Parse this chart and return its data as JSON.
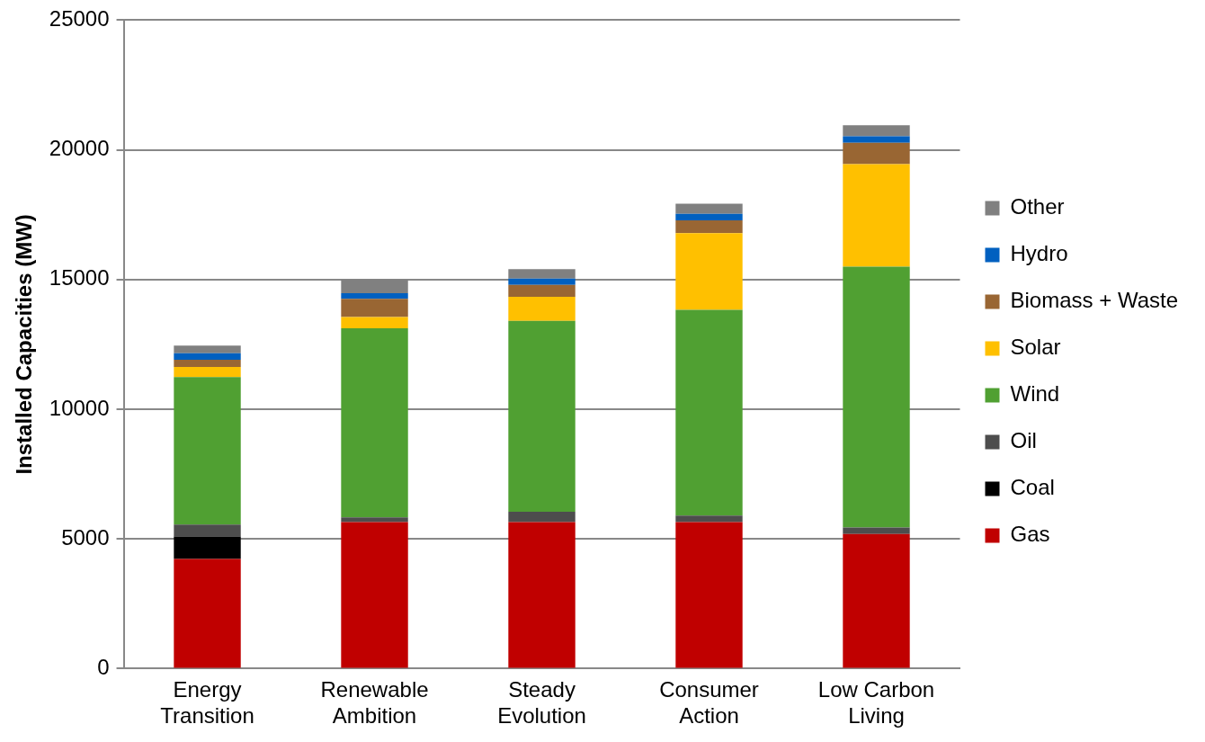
{
  "chart_data": {
    "type": "bar",
    "stacked": true,
    "ylabel": "Installed Capacities (MW)",
    "categories": [
      "Energy Transition",
      "Renewable Ambition",
      "Steady Evolution",
      "Consumer Action",
      "Low Carbon Living"
    ],
    "series": [
      {
        "name": "Gas",
        "color": "#c00000",
        "values": [
          4230,
          5650,
          5650,
          5650,
          5190
        ]
      },
      {
        "name": "Coal",
        "color": "#000000",
        "values": [
          860,
          0,
          0,
          0,
          0
        ]
      },
      {
        "name": "Oil",
        "color": "#4d4d4d",
        "values": [
          460,
          180,
          400,
          250,
          250
        ]
      },
      {
        "name": "Wind",
        "color": "#50a032",
        "values": [
          5690,
          7290,
          7360,
          7930,
          10060
        ]
      },
      {
        "name": "Solar",
        "color": "#ffc000",
        "values": [
          390,
          430,
          920,
          2960,
          3950
        ]
      },
      {
        "name": "Biomass + Waste",
        "color": "#996633",
        "values": [
          280,
          710,
          460,
          490,
          820
        ]
      },
      {
        "name": "Hydro",
        "color": "#0060c0",
        "values": [
          250,
          210,
          250,
          250,
          250
        ]
      },
      {
        "name": "Other",
        "color": "#808080",
        "values": [
          290,
          540,
          360,
          390,
          430
        ]
      }
    ],
    "ylim": [
      0,
      25000
    ],
    "yticks": [
      0,
      5000,
      10000,
      15000,
      20000,
      25000
    ],
    "grid": "y",
    "legend": "right"
  }
}
